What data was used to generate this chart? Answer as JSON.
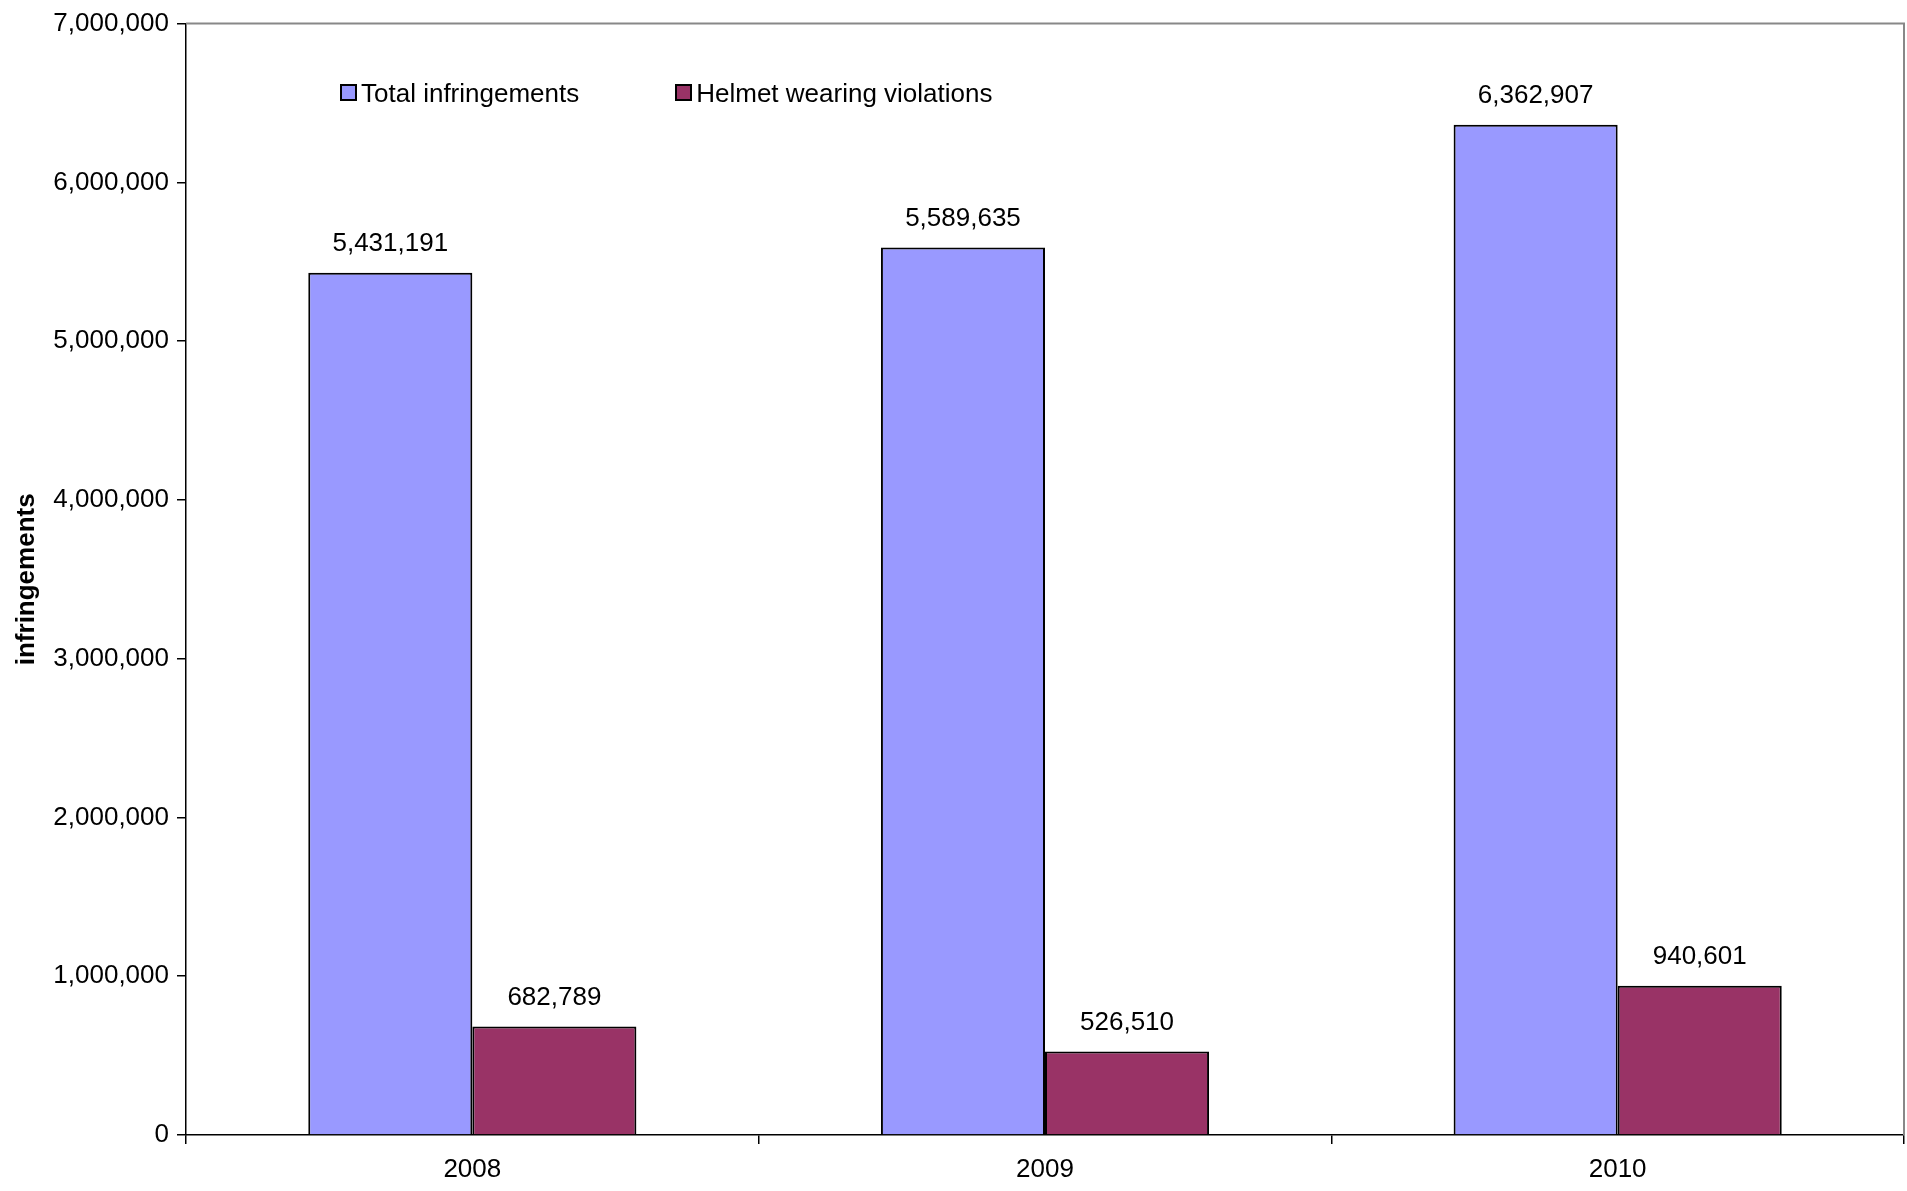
{
  "chart_data": {
    "type": "bar",
    "categories": [
      "2008",
      "2009",
      "2010"
    ],
    "series": [
      {
        "name": "Total infringements",
        "color": "#9999ff",
        "values": [
          5431191,
          5589635,
          6362907
        ],
        "value_labels": [
          "5,431,191",
          "5,589,635",
          "6,362,907"
        ]
      },
      {
        "name": "Helmet wearing violations",
        "color": "#993366",
        "values": [
          682789,
          526510,
          940601
        ],
        "value_labels": [
          "682,789",
          "526,510",
          "940,601"
        ]
      }
    ],
    "ylabel": "infringements",
    "ylim": [
      0,
      7000000
    ],
    "yticks": [
      0,
      {
        "value": 1000000,
        "label": "1,000,000"
      },
      {
        "value": 2000000,
        "label": "2,000,000"
      },
      {
        "value": 3000000,
        "label": "3,000,000"
      },
      {
        "value": 4000000,
        "label": "4,000,000"
      },
      {
        "value": 5000000,
        "label": "5,000,000"
      },
      {
        "value": 6000000,
        "label": "6,000,000"
      },
      {
        "value": 7000000,
        "label": "7,000,000"
      }
    ],
    "grid": false,
    "legend": "top left"
  }
}
